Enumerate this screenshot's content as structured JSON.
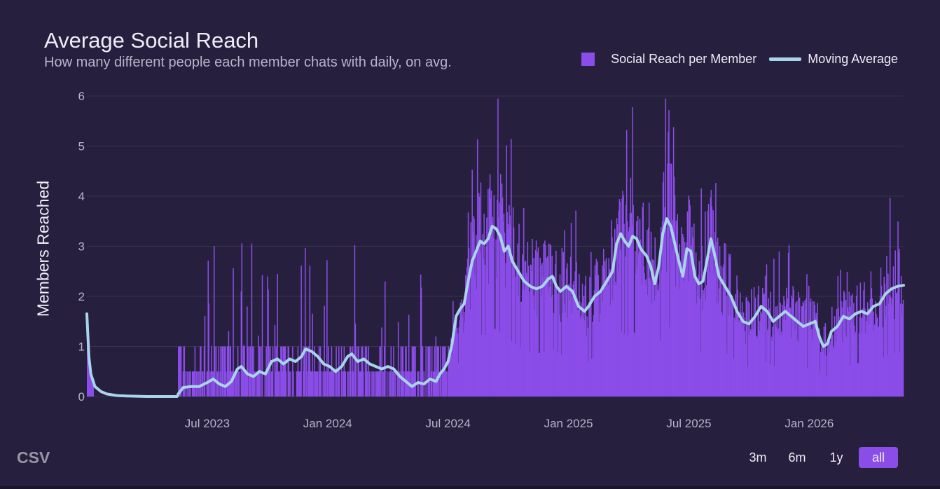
{
  "chart_data": {
    "type": "bar+line",
    "title": "Average Social Reach",
    "subtitle": "How many different people each member chats with daily, on avg.",
    "xlabel": "",
    "ylabel": "Members Reached",
    "ylim": [
      0,
      6
    ],
    "y_ticks": [
      "0",
      "1",
      "2",
      "3",
      "4",
      "5",
      "6"
    ],
    "x_start_month": 0,
    "x_end_month": 40.7,
    "x_ticks": [
      {
        "label": "Jul 2023",
        "month": 6
      },
      {
        "label": "Jan 2024",
        "month": 12
      },
      {
        "label": "Jul 2024",
        "month": 18
      },
      {
        "label": "Jan 2025",
        "month": 24
      },
      {
        "label": "Jul 2025",
        "month": 30
      },
      {
        "label": "Jan 2026",
        "month": 36
      }
    ],
    "series": [
      {
        "name": "Social Reach per Member",
        "kind": "bar",
        "color": "#8b4de8"
      },
      {
        "name": "Moving Average",
        "kind": "line",
        "color": "#a9d4ea",
        "points": [
          [
            0.0,
            1.65
          ],
          [
            0.1,
            0.8
          ],
          [
            0.2,
            0.45
          ],
          [
            0.4,
            0.2
          ],
          [
            0.7,
            0.1
          ],
          [
            1.0,
            0.05
          ],
          [
            1.5,
            0.02
          ],
          [
            2.0,
            0.01
          ],
          [
            3.0,
            0.0
          ],
          [
            4.5,
            0.0
          ],
          [
            4.55,
            0.05
          ],
          [
            4.8,
            0.18
          ],
          [
            5.2,
            0.2
          ],
          [
            5.6,
            0.2
          ],
          [
            6.0,
            0.28
          ],
          [
            6.3,
            0.35
          ],
          [
            6.6,
            0.25
          ],
          [
            6.9,
            0.2
          ],
          [
            7.2,
            0.3
          ],
          [
            7.5,
            0.55
          ],
          [
            7.7,
            0.6
          ],
          [
            8.0,
            0.45
          ],
          [
            8.3,
            0.4
          ],
          [
            8.6,
            0.5
          ],
          [
            8.9,
            0.45
          ],
          [
            9.2,
            0.7
          ],
          [
            9.5,
            0.75
          ],
          [
            9.8,
            0.65
          ],
          [
            10.1,
            0.75
          ],
          [
            10.4,
            0.7
          ],
          [
            10.7,
            0.8
          ],
          [
            10.9,
            0.95
          ],
          [
            11.2,
            0.9
          ],
          [
            11.5,
            0.8
          ],
          [
            11.8,
            0.65
          ],
          [
            12.1,
            0.6
          ],
          [
            12.4,
            0.5
          ],
          [
            12.7,
            0.6
          ],
          [
            13.0,
            0.8
          ],
          [
            13.2,
            0.85
          ],
          [
            13.5,
            0.7
          ],
          [
            13.8,
            0.75
          ],
          [
            14.1,
            0.65
          ],
          [
            14.4,
            0.6
          ],
          [
            14.7,
            0.55
          ],
          [
            15.0,
            0.6
          ],
          [
            15.3,
            0.55
          ],
          [
            15.6,
            0.4
          ],
          [
            15.9,
            0.3
          ],
          [
            16.2,
            0.2
          ],
          [
            16.5,
            0.28
          ],
          [
            16.8,
            0.25
          ],
          [
            17.1,
            0.35
          ],
          [
            17.4,
            0.3
          ],
          [
            17.6,
            0.45
          ],
          [
            17.8,
            0.55
          ],
          [
            18.0,
            0.7
          ],
          [
            18.2,
            1.05
          ],
          [
            18.4,
            1.6
          ],
          [
            18.6,
            1.75
          ],
          [
            18.8,
            1.85
          ],
          [
            19.0,
            2.3
          ],
          [
            19.2,
            2.7
          ],
          [
            19.4,
            2.9
          ],
          [
            19.6,
            3.1
          ],
          [
            19.8,
            3.05
          ],
          [
            20.0,
            3.15
          ],
          [
            20.2,
            3.4
          ],
          [
            20.4,
            3.35
          ],
          [
            20.6,
            3.2
          ],
          [
            20.8,
            2.9
          ],
          [
            21.0,
            3.0
          ],
          [
            21.2,
            2.7
          ],
          [
            21.5,
            2.5
          ],
          [
            21.8,
            2.3
          ],
          [
            22.1,
            2.2
          ],
          [
            22.4,
            2.15
          ],
          [
            22.7,
            2.2
          ],
          [
            23.0,
            2.35
          ],
          [
            23.2,
            2.4
          ],
          [
            23.4,
            2.2
          ],
          [
            23.6,
            2.1
          ],
          [
            23.9,
            2.2
          ],
          [
            24.2,
            2.1
          ],
          [
            24.5,
            1.8
          ],
          [
            24.8,
            1.7
          ],
          [
            25.0,
            1.8
          ],
          [
            25.3,
            2.0
          ],
          [
            25.6,
            2.1
          ],
          [
            25.9,
            2.3
          ],
          [
            26.2,
            2.5
          ],
          [
            26.4,
            3.05
          ],
          [
            26.6,
            3.25
          ],
          [
            26.8,
            3.1
          ],
          [
            27.0,
            3.0
          ],
          [
            27.2,
            3.2
          ],
          [
            27.4,
            3.15
          ],
          [
            27.6,
            2.95
          ],
          [
            27.9,
            2.8
          ],
          [
            28.1,
            2.6
          ],
          [
            28.3,
            2.25
          ],
          [
            28.5,
            2.6
          ],
          [
            28.7,
            3.25
          ],
          [
            28.9,
            3.55
          ],
          [
            29.1,
            3.4
          ],
          [
            29.3,
            3.05
          ],
          [
            29.5,
            2.7
          ],
          [
            29.7,
            2.4
          ],
          [
            29.9,
            2.95
          ],
          [
            30.1,
            2.9
          ],
          [
            30.3,
            2.4
          ],
          [
            30.5,
            2.25
          ],
          [
            30.7,
            2.3
          ],
          [
            30.9,
            2.7
          ],
          [
            31.1,
            3.15
          ],
          [
            31.3,
            2.8
          ],
          [
            31.5,
            2.4
          ],
          [
            31.8,
            2.2
          ],
          [
            32.1,
            2.0
          ],
          [
            32.4,
            1.7
          ],
          [
            32.7,
            1.5
          ],
          [
            33.0,
            1.45
          ],
          [
            33.3,
            1.6
          ],
          [
            33.6,
            1.8
          ],
          [
            33.9,
            1.7
          ],
          [
            34.2,
            1.5
          ],
          [
            34.5,
            1.6
          ],
          [
            34.8,
            1.7
          ],
          [
            35.1,
            1.6
          ],
          [
            35.4,
            1.5
          ],
          [
            35.7,
            1.4
          ],
          [
            36.0,
            1.45
          ],
          [
            36.3,
            1.5
          ],
          [
            36.5,
            1.2
          ],
          [
            36.7,
            1.0
          ],
          [
            36.9,
            1.05
          ],
          [
            37.1,
            1.3
          ],
          [
            37.4,
            1.4
          ],
          [
            37.7,
            1.6
          ],
          [
            38.0,
            1.55
          ],
          [
            38.3,
            1.65
          ],
          [
            38.6,
            1.7
          ],
          [
            38.9,
            1.65
          ],
          [
            39.2,
            1.8
          ],
          [
            39.5,
            1.85
          ],
          [
            39.8,
            2.05
          ],
          [
            40.1,
            2.15
          ],
          [
            40.4,
            2.2
          ],
          [
            40.7,
            2.22
          ]
        ]
      }
    ]
  },
  "legend": {
    "bar_label": "Social Reach per Member",
    "line_label": "Moving Average"
  },
  "controls": {
    "csv_label": "CSV",
    "ranges": [
      "3m",
      "6m",
      "1y",
      "all"
    ],
    "active_range": "all"
  },
  "colors": {
    "background": "#261f3d",
    "bar": "#8b4de8",
    "line": "#a9d4ea",
    "grid": "#3a3350",
    "axis_text": "#b9b3cc"
  }
}
